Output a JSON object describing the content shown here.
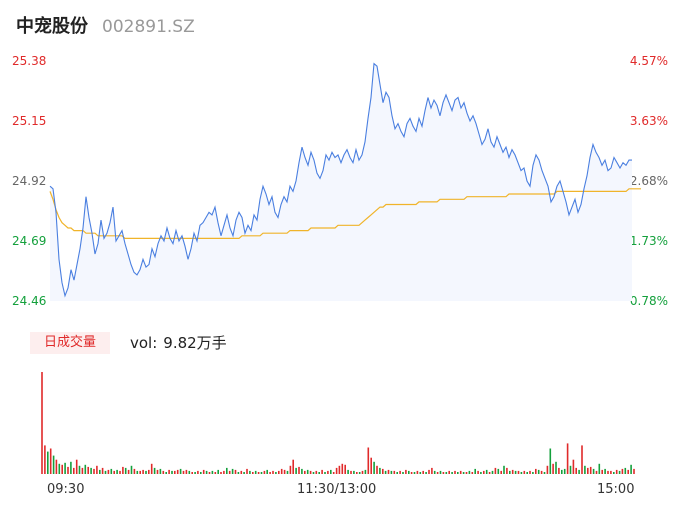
{
  "header": {
    "name": "中宠股份",
    "code": "002891.SZ"
  },
  "price_axis": {
    "left_labels": [
      "25.38",
      "25.15",
      "24.92",
      "24.69",
      "24.46"
    ],
    "right_labels": [
      "4.57%",
      "3.63%",
      "2.68%",
      "1.73%",
      "0.78%"
    ],
    "colors": [
      "#e02a2a",
      "#e02a2a",
      "#666666",
      "#14a03c",
      "#14a03c"
    ]
  },
  "volume": {
    "badge": "日成交量",
    "label": "vol:",
    "value": "9.82万手"
  },
  "time_axis": [
    "09:30",
    "11:30/13:00",
    "15:00"
  ],
  "colors": {
    "up": "#e02a2a",
    "down": "#14a03c",
    "price_line": "#4a7fe0",
    "avg_line": "#f0b42a",
    "fill": "#f4f7fe"
  },
  "chart_data": {
    "type": "line",
    "ylim": [
      24.46,
      25.38
    ],
    "series": [],
    "price": [
      24.9,
      24.89,
      24.8,
      24.62,
      24.53,
      24.48,
      24.51,
      24.58,
      24.54,
      24.6,
      24.66,
      24.74,
      24.86,
      24.78,
      24.72,
      24.64,
      24.68,
      24.77,
      24.7,
      24.72,
      24.76,
      24.82,
      24.69,
      24.71,
      24.73,
      24.68,
      24.64,
      24.6,
      24.57,
      24.56,
      24.58,
      24.62,
      24.59,
      24.6,
      24.66,
      24.63,
      24.68,
      24.71,
      24.69,
      24.74,
      24.7,
      24.68,
      24.73,
      24.69,
      24.71,
      24.67,
      24.62,
      24.66,
      24.72,
      24.69,
      24.75,
      24.76,
      24.78,
      24.8,
      24.79,
      24.82,
      24.76,
      24.71,
      24.75,
      24.79,
      24.74,
      24.71,
      24.77,
      24.8,
      24.78,
      24.72,
      24.75,
      24.73,
      24.79,
      24.77,
      24.85,
      24.9,
      24.87,
      24.83,
      24.86,
      24.8,
      24.78,
      24.83,
      24.86,
      24.84,
      24.9,
      24.88,
      24.92,
      24.99,
      25.05,
      25.01,
      24.98,
      25.03,
      25.0,
      24.95,
      24.93,
      24.96,
      25.02,
      25.0,
      25.03,
      25.01,
      25.02,
      24.99,
      25.02,
      25.04,
      25.01,
      24.99,
      25.04,
      25.0,
      25.02,
      25.07,
      25.16,
      25.24,
      25.37,
      25.36,
      25.29,
      25.22,
      25.26,
      25.24,
      25.17,
      25.12,
      25.14,
      25.11,
      25.09,
      25.14,
      25.16,
      25.13,
      25.11,
      25.16,
      25.13,
      25.19,
      25.24,
      25.2,
      25.23,
      25.21,
      25.17,
      25.22,
      25.25,
      25.22,
      25.19,
      25.23,
      25.24,
      25.2,
      25.22,
      25.18,
      25.15,
      25.17,
      25.14,
      25.1,
      25.06,
      25.08,
      25.12,
      25.07,
      25.05,
      25.09,
      25.06,
      25.03,
      25.05,
      25.01,
      25.04,
      25.02,
      24.99,
      24.96,
      24.97,
      24.92,
      24.9,
      24.98,
      25.02,
      25.0,
      24.96,
      24.93,
      24.9,
      24.84,
      24.86,
      24.9,
      24.92,
      24.88,
      24.84,
      24.79,
      24.82,
      24.85,
      24.8,
      24.83,
      24.89,
      24.94,
      25.01,
      25.06,
      25.03,
      25.01,
      24.98,
      25.0,
      24.96,
      24.97,
      25.01,
      24.99,
      24.97,
      24.99,
      24.98,
      25.0,
      25.0
    ],
    "avg": [
      24.88,
      24.85,
      24.81,
      24.78,
      24.76,
      24.75,
      24.74,
      24.74,
      24.73,
      24.73,
      24.73,
      24.73,
      24.72,
      24.72,
      24.72,
      24.72,
      24.71,
      24.71,
      24.71,
      24.71,
      24.71,
      24.71,
      24.71,
      24.71,
      24.71,
      24.7,
      24.7,
      24.7,
      24.7,
      24.7,
      24.7,
      24.7,
      24.7,
      24.7,
      24.7,
      24.7,
      24.7,
      24.7,
      24.7,
      24.7,
      24.7,
      24.7,
      24.7,
      24.7,
      24.7,
      24.7,
      24.7,
      24.7,
      24.7,
      24.7,
      24.7,
      24.7,
      24.7,
      24.7,
      24.7,
      24.7,
      24.7,
      24.7,
      24.7,
      24.7,
      24.7,
      24.7,
      24.7,
      24.7,
      24.71,
      24.71,
      24.71,
      24.71,
      24.71,
      24.71,
      24.71,
      24.72,
      24.72,
      24.72,
      24.72,
      24.72,
      24.72,
      24.72,
      24.72,
      24.72,
      24.73,
      24.73,
      24.73,
      24.73,
      24.73,
      24.73,
      24.73,
      24.74,
      24.74,
      24.74,
      24.74,
      24.74,
      24.74,
      24.74,
      24.74,
      24.74,
      24.75,
      24.75,
      24.75,
      24.75,
      24.75,
      24.75,
      24.75,
      24.75,
      24.76,
      24.77,
      24.78,
      24.79,
      24.8,
      24.81,
      24.82,
      24.82,
      24.83,
      24.83,
      24.83,
      24.83,
      24.83,
      24.83,
      24.83,
      24.83,
      24.83,
      24.83,
      24.83,
      24.84,
      24.84,
      24.84,
      24.84,
      24.84,
      24.84,
      24.84,
      24.85,
      24.85,
      24.85,
      24.85,
      24.85,
      24.85,
      24.85,
      24.85,
      24.85,
      24.86,
      24.86,
      24.86,
      24.86,
      24.86,
      24.86,
      24.86,
      24.86,
      24.86,
      24.86,
      24.86,
      24.86,
      24.86,
      24.86,
      24.87,
      24.87,
      24.87,
      24.87,
      24.87,
      24.87,
      24.87,
      24.87,
      24.87,
      24.87,
      24.87,
      24.87,
      24.87,
      24.87,
      24.87,
      24.87,
      24.88,
      24.88,
      24.88,
      24.88,
      24.88,
      24.88,
      24.88,
      24.88,
      24.88,
      24.88,
      24.88,
      24.88,
      24.88,
      24.88,
      24.88,
      24.88,
      24.88,
      24.88,
      24.88,
      24.88,
      24.88,
      24.88,
      24.88,
      24.88,
      24.89,
      24.89,
      24.89,
      24.89,
      24.89
    ],
    "volume": [
      100,
      28,
      22,
      25,
      18,
      14,
      10,
      9,
      11,
      7,
      12,
      6,
      14,
      8,
      6,
      9,
      7,
      6,
      5,
      8,
      4,
      6,
      3,
      4,
      5,
      3,
      4,
      3,
      7,
      6,
      4,
      8,
      5,
      3,
      3,
      4,
      3,
      4,
      10,
      6,
      4,
      5,
      3,
      2,
      4,
      3,
      3,
      4,
      5,
      3,
      4,
      3,
      2,
      2,
      3,
      2,
      4,
      3,
      2,
      3,
      2,
      4,
      2,
      3,
      6,
      3,
      5,
      4,
      2,
      3,
      2,
      5,
      3,
      2,
      3,
      2,
      2,
      3,
      4,
      2,
      3,
      2,
      3,
      5,
      4,
      3,
      8,
      14,
      6,
      7,
      5,
      3,
      4,
      3,
      2,
      3,
      2,
      4,
      2,
      3,
      4,
      2,
      6,
      8,
      10,
      9,
      4,
      3,
      3,
      2,
      2,
      3,
      4,
      26,
      16,
      12,
      8,
      6,
      5,
      3,
      4,
      3,
      3,
      2,
      3,
      2,
      4,
      3,
      2,
      2,
      3,
      2,
      3,
      2,
      4,
      6,
      3,
      2,
      3,
      2,
      2,
      3,
      2,
      3,
      2,
      3,
      2,
      2,
      3,
      2,
      5,
      3,
      2,
      3,
      4,
      2,
      3,
      6,
      5,
      3,
      8,
      6,
      3,
      4,
      3,
      3,
      2,
      3,
      2,
      3,
      2,
      5,
      4,
      3,
      2,
      8,
      25,
      10,
      12,
      6,
      4,
      5,
      30,
      8,
      14,
      6,
      4,
      28,
      8,
      6,
      7,
      5,
      3,
      10,
      4,
      5,
      3,
      3,
      2,
      4,
      3,
      5,
      6,
      4,
      9,
      5
    ],
    "volume_up": [
      1,
      1,
      0,
      1,
      0,
      1,
      0,
      1,
      0,
      1,
      0,
      1,
      1,
      0,
      1,
      0,
      1,
      0,
      1,
      1,
      0,
      1,
      0,
      1,
      0,
      1,
      0,
      1,
      1,
      0,
      1,
      0,
      1,
      0,
      1,
      1,
      0,
      1,
      1,
      0,
      1,
      0,
      1,
      0,
      1,
      0,
      1,
      1,
      0,
      1,
      1,
      0,
      1,
      0,
      1,
      0,
      1,
      0,
      1,
      0,
      1,
      0,
      1,
      1,
      0,
      1,
      0,
      1,
      0,
      1,
      0,
      1,
      0,
      1,
      0,
      1,
      0,
      1,
      0,
      1,
      1,
      0,
      1,
      1,
      1,
      0,
      1,
      1,
      0,
      1,
      0,
      1,
      0,
      1,
      0,
      1,
      0,
      1,
      0,
      1,
      0,
      1,
      1,
      1,
      1,
      1,
      0,
      1,
      0,
      1,
      0,
      1,
      0,
      1,
      1,
      0,
      1,
      0,
      1,
      0,
      1,
      0,
      1,
      0,
      1,
      0,
      1,
      0,
      1,
      0,
      1,
      0,
      1,
      0,
      1,
      1,
      0,
      1,
      0,
      1,
      0,
      1,
      0,
      1,
      0,
      1,
      0,
      1,
      0,
      1,
      0,
      1,
      0,
      1,
      0,
      1,
      0,
      1,
      0,
      1,
      0,
      1,
      0,
      1,
      0,
      1,
      0,
      1,
      0,
      1,
      0,
      1,
      0,
      1,
      0,
      1,
      0,
      1,
      0,
      1,
      0,
      0,
      1,
      0,
      1,
      1,
      0,
      1,
      0,
      1,
      1,
      0,
      1,
      0,
      1,
      0,
      1,
      1,
      0,
      1,
      0,
      1,
      0,
      1,
      0,
      1,
      0,
      1,
      0,
      1
    ]
  }
}
